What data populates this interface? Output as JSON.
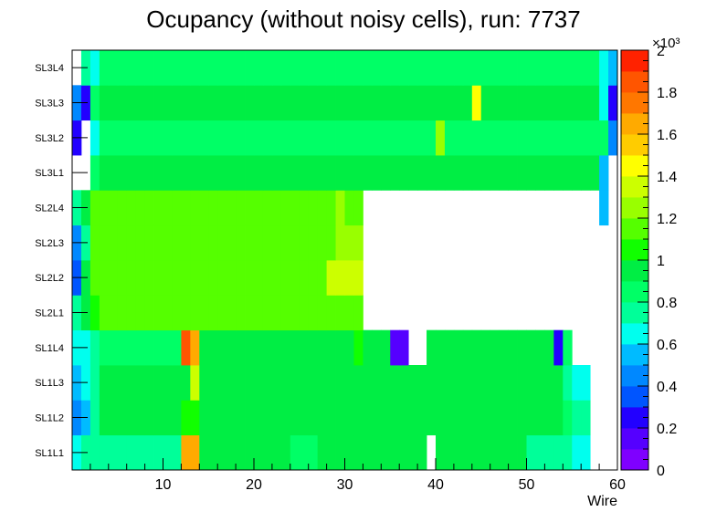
{
  "chart_data": {
    "type": "heatmap",
    "title": "Ocupancy (without noisy cells), run: 7737",
    "xlabel": "Wire",
    "ylabel": "",
    "xlim": [
      0,
      60
    ],
    "x_tick_labels": [
      "10",
      "20",
      "30",
      "40",
      "50",
      "60"
    ],
    "y_categories": [
      "SL1L1",
      "SL1L2",
      "SL1L3",
      "SL1L4",
      "SL2L1",
      "SL2L2",
      "SL2L3",
      "SL2L4",
      "SL3L1",
      "SL3L2",
      "SL3L3",
      "SL3L4"
    ],
    "color_scale": {
      "min": 0,
      "max": 2000,
      "multiplier_label": "×10³",
      "tick_labels": [
        "0",
        "0.2",
        "0.4",
        "0.6",
        "0.8",
        "1",
        "1.2",
        "1.4",
        "1.6",
        "1.8",
        "2"
      ],
      "palette": [
        "#7f00ff",
        "#5500ff",
        "#2200ff",
        "#0055ff",
        "#0088ff",
        "#00bbff",
        "#00ffee",
        "#00ff99",
        "#00ff66",
        "#00ee44",
        "#11ff00",
        "#55ff00",
        "#99ff00",
        "#ccff00",
        "#ffff00",
        "#ffcc00",
        "#ffaa00",
        "#ff7700",
        "#ff5500",
        "#ff2200"
      ]
    },
    "z_values": [
      [
        650,
        700,
        700,
        780,
        780,
        780,
        780,
        780,
        780,
        780,
        780,
        780,
        1600,
        1600,
        900,
        900,
        900,
        900,
        900,
        900,
        900,
        900,
        900,
        900,
        860,
        860,
        860,
        900,
        900,
        900,
        900,
        900,
        900,
        900,
        900,
        900,
        900,
        900,
        900,
        null,
        950,
        950,
        950,
        950,
        950,
        900,
        900,
        900,
        900,
        900,
        780,
        780,
        780,
        780,
        780,
        650,
        650,
        null,
        null,
        null
      ],
      [
        450,
        550,
        700,
        920,
        920,
        920,
        920,
        920,
        920,
        920,
        920,
        920,
        1000,
        1000,
        920,
        920,
        920,
        920,
        920,
        920,
        920,
        920,
        920,
        920,
        920,
        920,
        920,
        920,
        920,
        920,
        920,
        920,
        920,
        920,
        920,
        920,
        920,
        920,
        920,
        920,
        920,
        920,
        920,
        920,
        920,
        920,
        920,
        920,
        920,
        920,
        920,
        920,
        920,
        920,
        850,
        760,
        760,
        null,
        null,
        null
      ],
      [
        550,
        650,
        780,
        900,
        900,
        900,
        900,
        900,
        900,
        900,
        900,
        900,
        900,
        1350,
        900,
        900,
        900,
        900,
        900,
        900,
        900,
        900,
        900,
        900,
        900,
        900,
        900,
        900,
        900,
        900,
        900,
        900,
        900,
        900,
        900,
        900,
        900,
        900,
        900,
        900,
        900,
        900,
        900,
        900,
        900,
        900,
        900,
        900,
        900,
        900,
        900,
        900,
        900,
        900,
        760,
        680,
        680,
        null,
        null,
        null
      ],
      [
        600,
        650,
        780,
        880,
        880,
        880,
        880,
        880,
        880,
        880,
        880,
        880,
        1820,
        1620,
        900,
        900,
        900,
        900,
        900,
        900,
        900,
        900,
        900,
        900,
        900,
        900,
        900,
        900,
        900,
        900,
        900,
        1050,
        900,
        900,
        900,
        130,
        130,
        null,
        null,
        950,
        950,
        950,
        950,
        950,
        950,
        950,
        950,
        950,
        950,
        950,
        950,
        950,
        950,
        200,
        800,
        null,
        null,
        null,
        null,
        null
      ],
      [
        720,
        900,
        1080,
        1120,
        1120,
        1120,
        1120,
        1120,
        1120,
        1120,
        1120,
        1120,
        1120,
        1120,
        1120,
        1120,
        1120,
        1120,
        1120,
        1120,
        1120,
        1120,
        1120,
        1120,
        1120,
        1120,
        1120,
        1120,
        1180,
        1180,
        1180,
        1180,
        null,
        null,
        null,
        null,
        null,
        null,
        null,
        null,
        null,
        null,
        null,
        null,
        null,
        null,
        null,
        null,
        null,
        null,
        null,
        null,
        null,
        null,
        null,
        null,
        null,
        null,
        null,
        null
      ],
      [
        300,
        980,
        1120,
        1130,
        1130,
        1130,
        1130,
        1130,
        1130,
        1130,
        1130,
        1130,
        1130,
        1130,
        1130,
        1130,
        1130,
        1130,
        1130,
        1130,
        1130,
        1130,
        1130,
        1130,
        1130,
        1130,
        1130,
        1130,
        1300,
        1300,
        1300,
        1300,
        null,
        null,
        null,
        null,
        null,
        null,
        null,
        null,
        null,
        null,
        null,
        null,
        null,
        null,
        null,
        null,
        null,
        null,
        null,
        null,
        null,
        null,
        null,
        null,
        null,
        null,
        null,
        null
      ],
      [
        450,
        750,
        1100,
        1140,
        1140,
        1140,
        1140,
        1140,
        1140,
        1140,
        1140,
        1140,
        1140,
        1140,
        1140,
        1140,
        1140,
        1140,
        1140,
        1140,
        1140,
        1140,
        1140,
        1140,
        1140,
        1140,
        1140,
        1140,
        1140,
        1230,
        1230,
        1230,
        null,
        null,
        null,
        null,
        null,
        null,
        null,
        null,
        null,
        null,
        null,
        null,
        null,
        null,
        null,
        null,
        null,
        null,
        null,
        null,
        null,
        null,
        null,
        null,
        null,
        null,
        null,
        null
      ],
      [
        750,
        950,
        1100,
        1150,
        1150,
        1150,
        1150,
        1150,
        1150,
        1150,
        1150,
        1150,
        1150,
        1150,
        1150,
        1150,
        1150,
        1150,
        1150,
        1150,
        1150,
        1150,
        1150,
        1150,
        1150,
        1150,
        1150,
        1150,
        1150,
        1230,
        1150,
        1150,
        null,
        null,
        null,
        null,
        null,
        null,
        null,
        null,
        null,
        null,
        null,
        null,
        null,
        null,
        null,
        null,
        null,
        null,
        null,
        null,
        null,
        null,
        null,
        null,
        null,
        null,
        580,
        null
      ],
      [
        null,
        null,
        850,
        950,
        950,
        950,
        950,
        950,
        950,
        950,
        950,
        950,
        950,
        950,
        950,
        950,
        950,
        950,
        950,
        950,
        950,
        950,
        950,
        950,
        950,
        950,
        950,
        950,
        950,
        950,
        950,
        950,
        950,
        950,
        950,
        950,
        950,
        950,
        950,
        950,
        950,
        950,
        950,
        950,
        950,
        950,
        950,
        950,
        950,
        950,
        950,
        950,
        950,
        950,
        950,
        950,
        950,
        950,
        580,
        null
      ],
      [
        220,
        null,
        650,
        880,
        880,
        880,
        880,
        880,
        880,
        880,
        880,
        880,
        880,
        880,
        880,
        880,
        880,
        880,
        880,
        880,
        880,
        880,
        880,
        880,
        880,
        880,
        880,
        880,
        880,
        880,
        880,
        880,
        880,
        880,
        880,
        880,
        880,
        880,
        880,
        880,
        1250,
        880,
        880,
        880,
        880,
        880,
        880,
        880,
        880,
        880,
        880,
        880,
        880,
        880,
        880,
        880,
        880,
        880,
        820,
        400
      ],
      [
        400,
        220,
        850,
        950,
        950,
        950,
        950,
        950,
        950,
        950,
        950,
        950,
        950,
        950,
        950,
        950,
        950,
        950,
        950,
        950,
        950,
        950,
        950,
        950,
        950,
        950,
        950,
        950,
        950,
        950,
        950,
        950,
        950,
        950,
        950,
        950,
        950,
        950,
        950,
        950,
        950,
        950,
        950,
        950,
        1400,
        950,
        950,
        950,
        950,
        950,
        950,
        950,
        950,
        950,
        950,
        950,
        950,
        950,
        650,
        250
      ],
      [
        null,
        700,
        620,
        870,
        870,
        870,
        870,
        870,
        870,
        870,
        870,
        870,
        870,
        870,
        870,
        870,
        870,
        870,
        870,
        870,
        870,
        870,
        870,
        870,
        870,
        870,
        870,
        870,
        870,
        870,
        870,
        870,
        870,
        870,
        870,
        870,
        870,
        870,
        870,
        870,
        870,
        870,
        870,
        870,
        870,
        870,
        870,
        870,
        870,
        870,
        870,
        870,
        870,
        870,
        870,
        870,
        870,
        870,
        650,
        500
      ]
    ]
  }
}
